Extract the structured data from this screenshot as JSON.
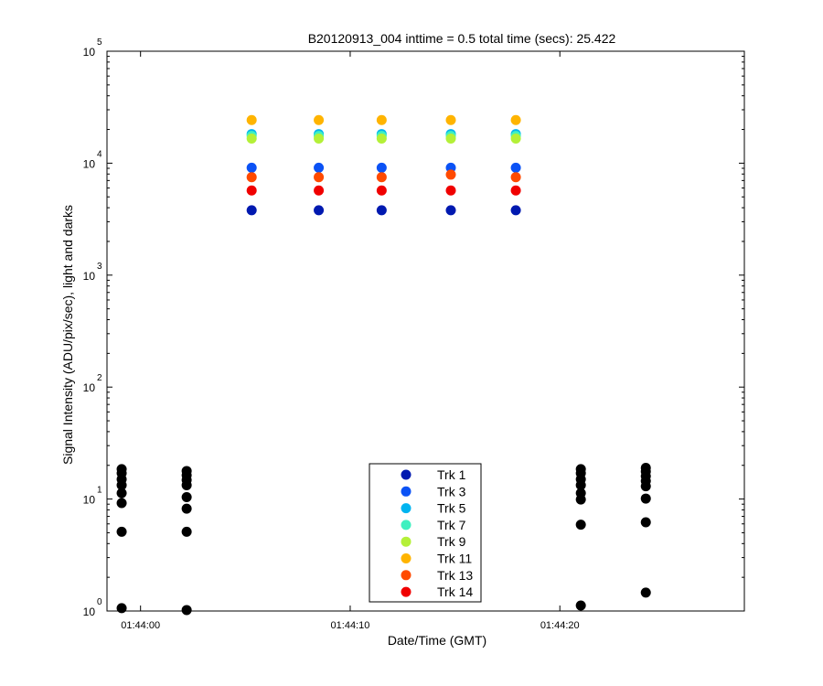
{
  "chart_data": {
    "type": "scatter",
    "title": "B20120913_004 inttime = 0.5 total time (secs): 25.422",
    "xlabel": "Date/Time (GMT)",
    "ylabel": "Signal Intensity (ADU/pix/sec), light and darks",
    "yscale": "log",
    "ylim": [
      1,
      100000
    ],
    "xlim": [
      "01:43:58.4",
      "01:44:28.8"
    ],
    "x_ticks": [
      "01:44:00",
      "01:44:10",
      "01:44:20"
    ],
    "y_ticks": [
      {
        "base": "10",
        "exp": "0"
      },
      {
        "base": "10",
        "exp": "1"
      },
      {
        "base": "10",
        "exp": "2"
      },
      {
        "base": "10",
        "exp": "3"
      },
      {
        "base": "10",
        "exp": "4"
      },
      {
        "base": "10",
        "exp": "5"
      }
    ],
    "grid": false,
    "legend_position": "bottom-center",
    "light_times": [
      "01:44:05.3",
      "01:44:08.5",
      "01:44:11.5",
      "01:44:14.8",
      "01:44:17.9"
    ],
    "series": [
      {
        "name": "Trk 1",
        "color": "#0019b0",
        "values": [
          3800,
          3800,
          3800,
          3800,
          3800
        ]
      },
      {
        "name": "Trk 3",
        "color": "#0b52f5",
        "values": [
          9100,
          9100,
          9100,
          9100,
          9100
        ]
      },
      {
        "name": "Trk 5",
        "color": "#00b4f0",
        "values": [
          18200,
          18200,
          18200,
          18200,
          18200
        ]
      },
      {
        "name": "Trk 7",
        "color": "#40f0c0",
        "values": [
          17500,
          17500,
          17500,
          17500,
          17500
        ]
      },
      {
        "name": "Trk 9",
        "color": "#b4f038",
        "values": [
          16600,
          16600,
          16600,
          16600,
          16600
        ]
      },
      {
        "name": "Trk 11",
        "color": "#ffb400",
        "values": [
          24300,
          24300,
          24300,
          24300,
          24300
        ]
      },
      {
        "name": "Trk 13",
        "color": "#ff4a00",
        "values": [
          7500,
          7500,
          7500,
          7900,
          7500
        ]
      },
      {
        "name": "Trk 14",
        "color": "#f00000",
        "values": [
          5700,
          5700,
          5700,
          5700,
          5700
        ]
      }
    ],
    "darks": {
      "color": "#000000",
      "groups": [
        {
          "x": "01:43:59.1",
          "values": [
            18.5,
            17.0,
            15.0,
            13.3,
            11.3,
            9.2,
            5.1,
            1.06
          ]
        },
        {
          "x": "01:44:02.2",
          "values": [
            17.8,
            16.3,
            14.8,
            13.3,
            10.4,
            8.2,
            5.1,
            1.02
          ]
        },
        {
          "x": "01:44:21.0",
          "values": [
            18.5,
            17.0,
            15.0,
            13.3,
            11.3,
            9.9,
            5.9,
            1.12
          ]
        },
        {
          "x": "01:44:24.1",
          "values": [
            19.0,
            17.6,
            16.0,
            14.5,
            13.0,
            10.1,
            6.2,
            1.46
          ]
        }
      ]
    }
  }
}
